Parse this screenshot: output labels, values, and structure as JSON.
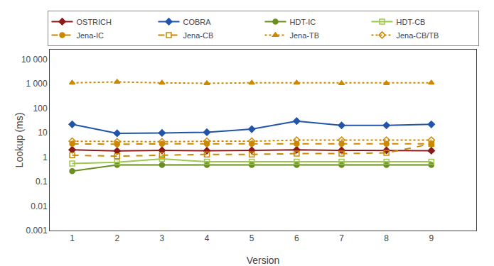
{
  "chart_data": {
    "type": "line",
    "xlabel": "Version",
    "ylabel": "Lookup (ms)",
    "x": [
      1,
      2,
      3,
      4,
      5,
      6,
      7,
      8,
      9
    ],
    "series": [
      {
        "name": "OSTRICH",
        "color": "#8B1A1A",
        "marker": "diamond",
        "line_style": "solid",
        "values": [
          2.0,
          1.8,
          1.9,
          1.85,
          1.9,
          2.0,
          1.9,
          1.9,
          1.85
        ]
      },
      {
        "name": "COBRA",
        "color": "#2255AA",
        "marker": "diamond",
        "line_style": "solid",
        "values": [
          22,
          9.5,
          9.8,
          10.5,
          14,
          30,
          20,
          20,
          22
        ]
      },
      {
        "name": "HDT-IC",
        "color": "#6B8E23",
        "marker": "circle",
        "line_style": "solid",
        "values": [
          0.27,
          0.48,
          0.48,
          0.48,
          0.48,
          0.48,
          0.48,
          0.48,
          0.48
        ]
      },
      {
        "name": "HDT-CB",
        "color": "#9DC84B",
        "marker": "square-open",
        "line_style": "solid",
        "values": [
          0.55,
          0.62,
          0.85,
          0.65,
          0.65,
          0.65,
          0.65,
          0.65,
          0.65
        ]
      },
      {
        "name": "Jena-IC",
        "color": "#CC8800",
        "marker": "circle",
        "line_style": "dash",
        "values": [
          3.5,
          3.4,
          3.5,
          3.5,
          3.5,
          3.5,
          3.5,
          3.5,
          3.5
        ]
      },
      {
        "name": "Jena-CB",
        "color": "#CC8800",
        "marker": "square-open",
        "line_style": "dash",
        "values": [
          1.2,
          1.1,
          1.2,
          1.3,
          1.3,
          1.4,
          1.4,
          1.5,
          3.5
        ]
      },
      {
        "name": "Jena-TB",
        "color": "#CC8800",
        "marker": "triangle-up",
        "line_style": "dot",
        "values": [
          1100,
          1200,
          1100,
          1050,
          1100,
          1100,
          1050,
          1050,
          1100
        ]
      },
      {
        "name": "Jena-CB/TB",
        "color": "#CC8800",
        "marker": "diamond-open",
        "line_style": "dot",
        "values": [
          4.5,
          4.3,
          4.3,
          4.5,
          4.5,
          5.0,
          5.0,
          5.0,
          5.0
        ]
      }
    ],
    "log": "y",
    "xlim": [
      0.5,
      10.0
    ],
    "ylim": [
      0.001,
      25000
    ],
    "xticks": [
      1,
      2,
      3,
      4,
      5,
      6,
      7,
      8,
      9
    ],
    "yticks": [
      0.001,
      0.01,
      0.1,
      1,
      10,
      100,
      {
        "value": 1000,
        "label": "1 000"
      },
      {
        "value": 10000,
        "label": "10 000"
      }
    ],
    "grid": false,
    "legend": "top"
  }
}
